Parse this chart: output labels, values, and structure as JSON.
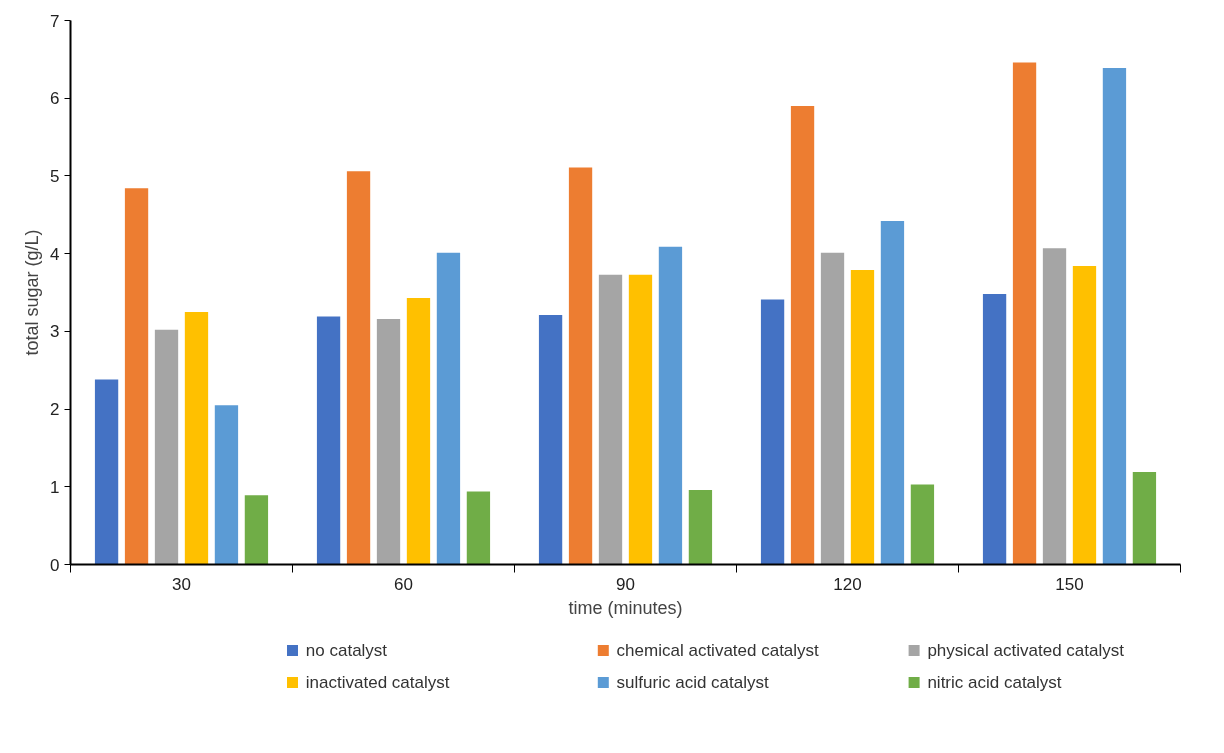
{
  "chart_data": {
    "type": "bar",
    "xlabel": "time (minutes)",
    "ylabel": "total sugar (g/L)",
    "categories": [
      "30",
      "60",
      "90",
      "120",
      "150"
    ],
    "series": [
      {
        "name": "no catalyst",
        "color": "#4472c4",
        "values": [
          2.38,
          3.19,
          3.21,
          3.41,
          3.48
        ]
      },
      {
        "name": "chemical activated catalyst",
        "color": "#ed7d31",
        "values": [
          4.84,
          5.06,
          5.11,
          5.9,
          6.46
        ]
      },
      {
        "name": "physical activated catalyst",
        "color": "#a5a5a5",
        "values": [
          3.02,
          3.16,
          3.73,
          4.01,
          4.07
        ]
      },
      {
        "name": "inactivated catalyst",
        "color": "#ffc000",
        "values": [
          3.25,
          3.43,
          3.73,
          3.79,
          3.84
        ]
      },
      {
        "name": "sulfuric acid catalyst",
        "color": "#5b9bd5",
        "values": [
          2.05,
          4.01,
          4.09,
          4.42,
          6.39
        ]
      },
      {
        "name": "nitric acid catalyst",
        "color": "#70ad47",
        "values": [
          0.89,
          0.94,
          0.96,
          1.03,
          1.19
        ]
      }
    ],
    "ylim": [
      0,
      7
    ],
    "yticks": [
      0,
      1,
      2,
      3,
      4,
      5,
      6,
      7
    ],
    "grid": false,
    "legend": "bottom"
  }
}
